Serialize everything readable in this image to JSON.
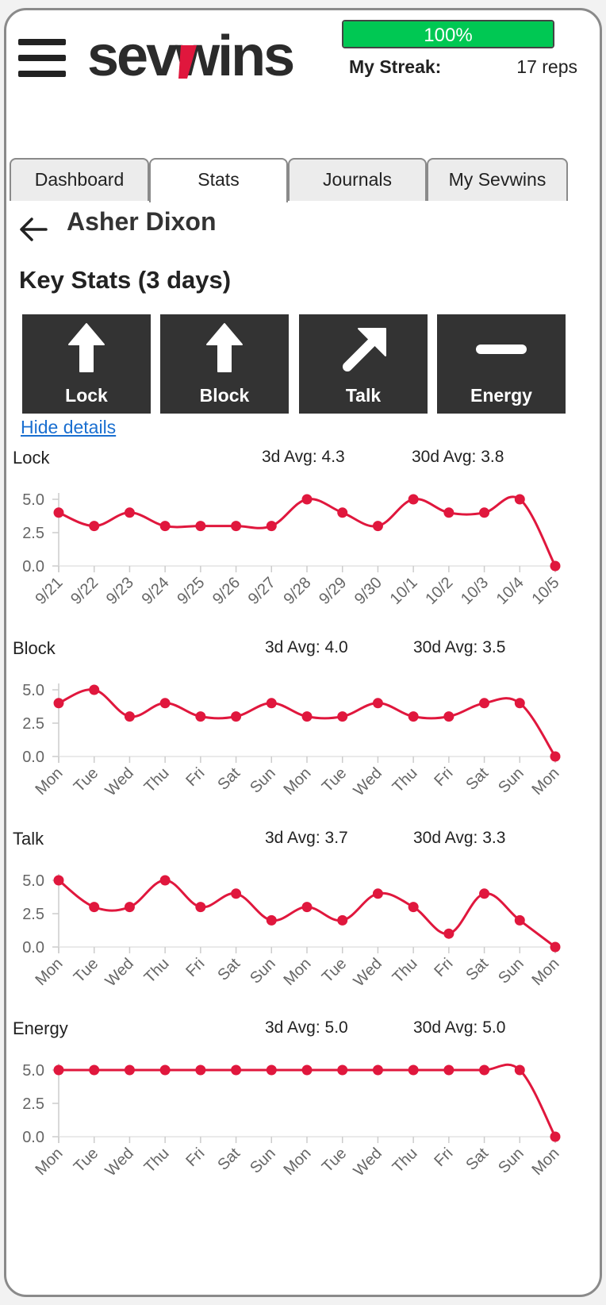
{
  "header": {
    "logo_text": "sevwins",
    "progress": {
      "label": "100%",
      "value": 100
    },
    "streak_label": "My Streak:",
    "streak_value": "17 reps"
  },
  "tabs": [
    {
      "label": "Dashboard",
      "active": false
    },
    {
      "label": "Stats",
      "active": true
    },
    {
      "label": "Journals",
      "active": false
    },
    {
      "label": "My Sevwins",
      "active": false
    }
  ],
  "title": {
    "name": "Asher Dixon",
    "section": "Key Stats (3 days)"
  },
  "tiles": [
    {
      "label": "Lock",
      "trend": "up",
      "icon": "arrow-up-icon"
    },
    {
      "label": "Block",
      "trend": "up",
      "icon": "arrow-up-icon"
    },
    {
      "label": "Talk",
      "trend": "up-right",
      "icon": "arrow-up-right-icon"
    },
    {
      "label": "Energy",
      "trend": "flat",
      "icon": "dash-icon"
    }
  ],
  "hide_details": "Hide details",
  "colors": {
    "line": "#e0173d",
    "tile": "#333333",
    "progress": "#00c853",
    "link": "#1a6fd0"
  },
  "chart_data": [
    {
      "type": "line",
      "title": "Lock",
      "avg3": "3d Avg: 4.3",
      "avg30": "30d Avg: 3.8",
      "categories": [
        "9/21",
        "9/22",
        "9/23",
        "9/24",
        "9/25",
        "9/26",
        "9/27",
        "9/28",
        "9/29",
        "9/30",
        "10/1",
        "10/2",
        "10/3",
        "10/4",
        "10/5"
      ],
      "values": [
        4,
        3,
        4,
        3,
        3,
        3,
        3,
        5,
        4,
        3,
        5,
        4,
        4,
        5,
        0
      ],
      "yticks": [
        "5.0",
        "2.5",
        "0.0"
      ],
      "ylim": [
        0,
        5
      ]
    },
    {
      "type": "line",
      "title": "Block",
      "avg3": "3d Avg: 4.0",
      "avg30": "30d Avg: 3.5",
      "categories": [
        "Mon",
        "Tue",
        "Wed",
        "Thu",
        "Fri",
        "Sat",
        "Sun",
        "Mon",
        "Tue",
        "Wed",
        "Thu",
        "Fri",
        "Sat",
        "Sun",
        "Mon"
      ],
      "values": [
        4,
        5,
        3,
        4,
        3,
        3,
        4,
        3,
        3,
        4,
        3,
        3,
        4,
        4,
        0
      ],
      "yticks": [
        "5.0",
        "2.5",
        "0.0"
      ],
      "ylim": [
        0,
        5
      ]
    },
    {
      "type": "line",
      "title": "Talk",
      "avg3": "3d Avg: 3.7",
      "avg30": "30d Avg: 3.3",
      "categories": [
        "Mon",
        "Tue",
        "Wed",
        "Thu",
        "Fri",
        "Sat",
        "Sun",
        "Mon",
        "Tue",
        "Wed",
        "Thu",
        "Fri",
        "Sat",
        "Sun",
        "Mon"
      ],
      "values": [
        5,
        3,
        3,
        5,
        3,
        4,
        2,
        3,
        2,
        4,
        3,
        1,
        4,
        2,
        0
      ],
      "yticks": [
        "5.0",
        "2.5",
        "0.0"
      ],
      "ylim": [
        0,
        5
      ]
    },
    {
      "type": "line",
      "title": "Energy",
      "avg3": "3d Avg: 5.0",
      "avg30": "30d Avg: 5.0",
      "categories": [
        "Mon",
        "Tue",
        "Wed",
        "Thu",
        "Fri",
        "Sat",
        "Sun",
        "Mon",
        "Tue",
        "Wed",
        "Thu",
        "Fri",
        "Sat",
        "Sun",
        "Mon"
      ],
      "values": [
        5,
        5,
        5,
        5,
        5,
        5,
        5,
        5,
        5,
        5,
        5,
        5,
        5,
        5,
        0
      ],
      "yticks": [
        "5.0",
        "2.5",
        "0.0"
      ],
      "ylim": [
        0,
        5
      ]
    }
  ]
}
